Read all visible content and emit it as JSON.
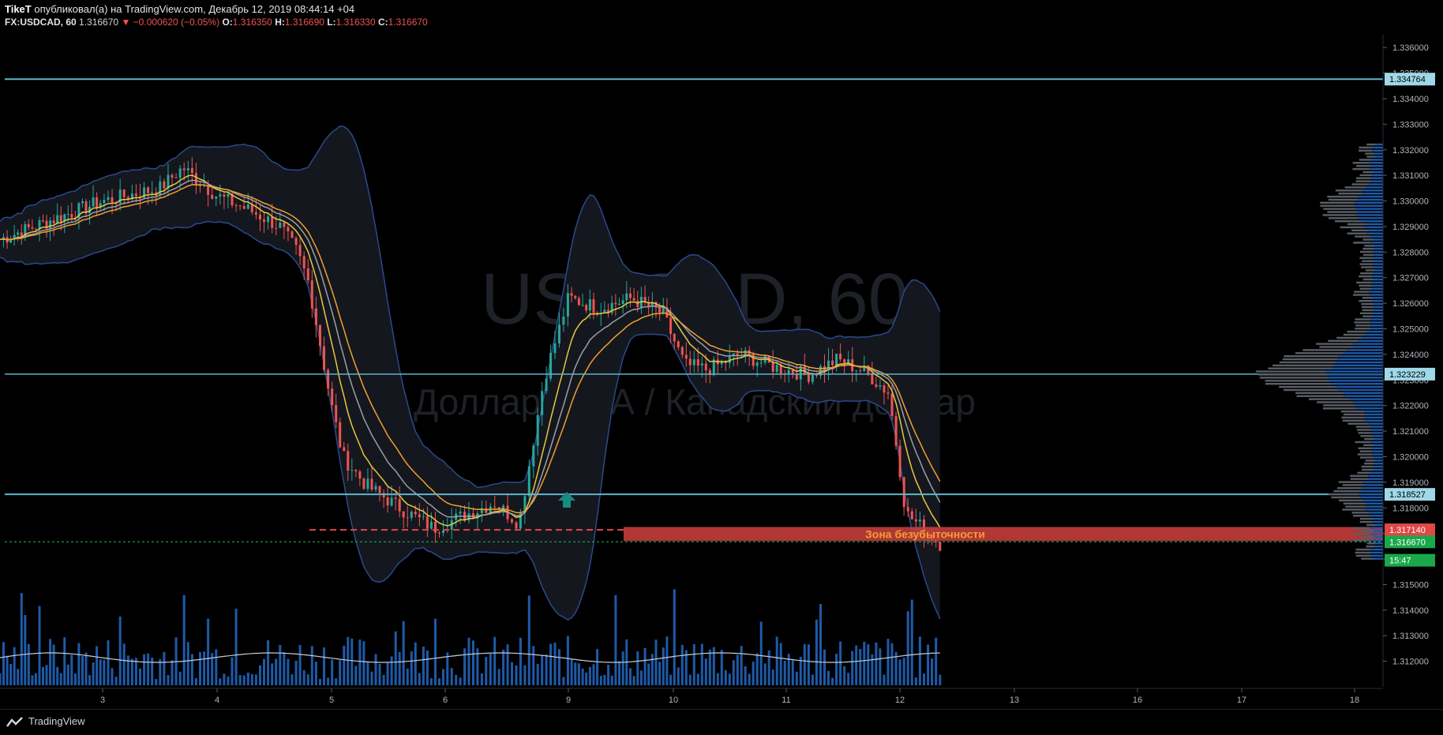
{
  "header": {
    "author": "TikeT",
    "published_text": "опубликовал(а) на TradingView.com, Декабрь 12, 2019 08:44:14 +04",
    "symbol": "FX:USDCAD, 60",
    "last": "1.316670",
    "change": "−0.000620 (−0.05%)",
    "o_label": "O:",
    "o": "1.316350",
    "h_label": "H:",
    "h": "1.316690",
    "l_label": "L:",
    "l": "1.316330",
    "c_label": "C:",
    "c": "1.316670"
  },
  "watermark": {
    "line1": "USDCAD, 60",
    "line2": "Доллар США / Канадский доллар"
  },
  "zone_label": "Зона безубыточности",
  "footer": {
    "brand": "TradingView"
  },
  "colors": {
    "background": "#000000",
    "up": "#26a69a",
    "down": "#ef5350",
    "volume": "#2962ff",
    "bb_line": "#2a4a8c",
    "level_line": "#5fb4cc",
    "ma_orange": "#f0a030",
    "ma_yellow": "#e8c840",
    "ma_gray": "#9aa0a8",
    "zone": "#e04848"
  },
  "chart_data": {
    "type": "candlestick",
    "symbol": "USDCAD",
    "timeframe": "60",
    "y_range": [
      1.311,
      1.3365
    ],
    "y_ticks": [
      "1.336000",
      "1.335000",
      "1.334000",
      "1.333000",
      "1.332000",
      "1.331000",
      "1.330000",
      "1.329000",
      "1.328000",
      "1.327000",
      "1.326000",
      "1.325000",
      "1.324000",
      "1.323000",
      "1.322000",
      "1.321000",
      "1.320000",
      "1.319000",
      "1.318000",
      "1.317000",
      "1.316000",
      "1.315000",
      "1.314000",
      "1.313000",
      "1.312000"
    ],
    "x_ticks": [
      "3",
      "4",
      "5",
      "6",
      "9",
      "10",
      "11",
      "12",
      "13",
      "16",
      "17",
      "18"
    ],
    "horizontal_levels": [
      {
        "label": "1.334764",
        "value": 1.334764
      },
      {
        "label": "1.323229",
        "value": 1.323229
      },
      {
        "label": "1.318527",
        "value": 1.318527
      }
    ],
    "price_labels": [
      {
        "label": "1.317140",
        "value": 1.31714,
        "color": "#e04848"
      },
      {
        "label": "1.316670",
        "value": 1.31667,
        "color": "#1aa84a"
      },
      {
        "label": "15:47",
        "value": 1.31595,
        "color": "#1aa84a"
      }
    ],
    "close_path": [
      [
        2,
        1.3285
      ],
      [
        3,
        1.33
      ],
      [
        3.5,
        1.3305
      ],
      [
        3.7,
        1.3313
      ],
      [
        4,
        1.3302
      ],
      [
        4.3,
        1.3296
      ],
      [
        4.55,
        1.329
      ],
      [
        4.7,
        1.328
      ],
      [
        4.8,
        1.3268
      ],
      [
        5,
        1.322
      ],
      [
        5.1,
        1.32
      ],
      [
        5.3,
        1.3189
      ],
      [
        5.6,
        1.318
      ],
      [
        5.9,
        1.3172
      ],
      [
        6.1,
        1.3176
      ],
      [
        6.4,
        1.3182
      ],
      [
        6.6,
        1.3174
      ],
      [
        6.8,
        1.323
      ],
      [
        7.0,
        1.3262
      ],
      [
        7.3,
        1.3258
      ],
      [
        7.6,
        1.3262
      ],
      [
        7.9,
        1.3256
      ],
      [
        8.1,
        1.3236
      ],
      [
        8.3,
        1.3234
      ],
      [
        8.6,
        1.324
      ],
      [
        8.9,
        1.3235
      ],
      [
        9.2,
        1.3232
      ],
      [
        9.45,
        1.3238
      ],
      [
        9.7,
        1.3233
      ],
      [
        9.9,
        1.3225
      ],
      [
        10.0,
        1.3195
      ],
      [
        10.05,
        1.3178
      ],
      [
        10.25,
        1.317
      ],
      [
        10.35,
        1.3166
      ]
    ],
    "zone": {
      "label": "Зона безубыточности",
      "from_value": 1.3167,
      "to_value": 1.31725
    }
  }
}
